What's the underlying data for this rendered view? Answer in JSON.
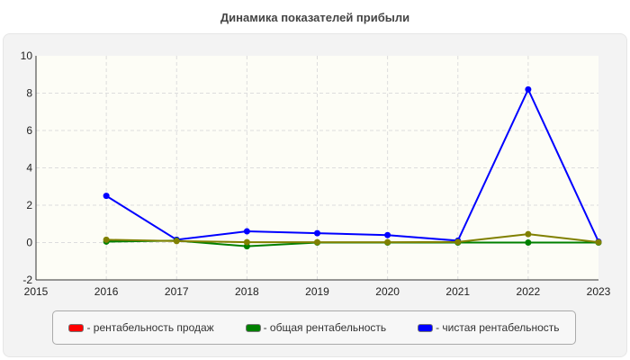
{
  "chart_data": {
    "type": "line",
    "title": "Динамика показателей прибыли",
    "x": [
      2016,
      2017,
      2018,
      2019,
      2020,
      2021,
      2022,
      2023
    ],
    "xlim": [
      2015,
      2023
    ],
    "ylim": [
      -2,
      10
    ],
    "yticks": [
      -2,
      0,
      2,
      4,
      6,
      8,
      10
    ],
    "xticks": [
      2015,
      2016,
      2017,
      2018,
      2019,
      2020,
      2021,
      2022,
      2023
    ],
    "grid": true,
    "legend_position": "bottom",
    "series": [
      {
        "name": "- рентабельность продаж",
        "color": "#ff0000",
        "line_color": "#808000",
        "values": [
          0.15,
          0.08,
          0.02,
          0.02,
          0.02,
          0.03,
          0.45,
          0.02
        ]
      },
      {
        "name": "- общая рентабельность",
        "color": "#008000",
        "line_color": "#008000",
        "values": [
          0.05,
          0.1,
          -0.2,
          0,
          0,
          0,
          0,
          0
        ]
      },
      {
        "name": "- чистая рентабельность",
        "color": "#0000ff",
        "line_color": "#0000ff",
        "values": [
          2.5,
          0.15,
          0.6,
          0.5,
          0.4,
          0.1,
          8.2,
          0.05
        ]
      }
    ]
  }
}
